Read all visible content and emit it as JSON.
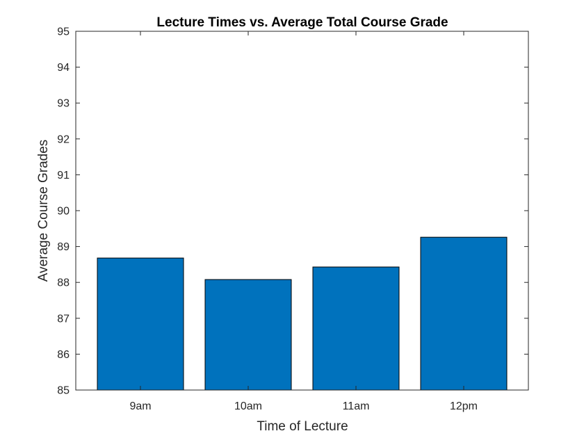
{
  "chart_data": {
    "type": "bar",
    "title": "Lecture Times vs. Average Total Course Grade",
    "xlabel": "Time of Lecture",
    "ylabel": "Average Course Grades",
    "categories": [
      "9am",
      "10am",
      "11am",
      "12pm"
    ],
    "values": [
      88.68,
      88.08,
      88.43,
      89.26
    ],
    "ylim": [
      85,
      95
    ],
    "yticks": [
      85,
      86,
      87,
      88,
      89,
      90,
      91,
      92,
      93,
      94,
      95
    ],
    "grid": false,
    "legend": "none",
    "colors": {
      "bar_fill": "#0072BD",
      "bar_edge": "#000000",
      "axis": "#262626"
    }
  }
}
